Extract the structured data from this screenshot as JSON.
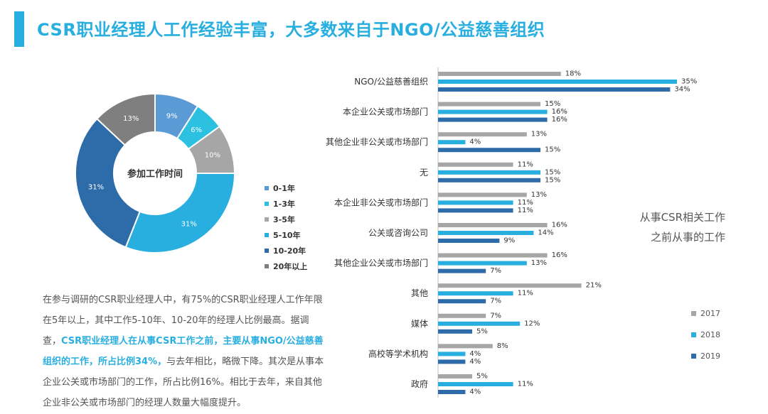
{
  "page": {
    "title": "CSR职业经理人工作经验丰富，大多数来自于NGO/公益慈善组织"
  },
  "colors": {
    "accent": "#29aee0",
    "y2017": "#a6a6a6",
    "y2018": "#29aee0",
    "y2019": "#2e6ca9"
  },
  "chart_data": [
    {
      "type": "pie",
      "title": "参加工作时间",
      "categories": [
        "0-1年",
        "1-3年",
        "3-5年",
        "5-10年",
        "10-20年",
        "20年以上"
      ],
      "values": [
        9,
        6,
        10,
        31,
        31,
        13
      ],
      "labels": [
        "9%",
        "6%",
        "10%",
        "31%",
        "31%",
        "13%"
      ],
      "colors": [
        "#5b9bd5",
        "#2cc1e0",
        "#a6a6a6",
        "#29aee0",
        "#2e6ca9",
        "#7f7f7f"
      ],
      "legend": "right"
    },
    {
      "type": "bar",
      "orientation": "horizontal",
      "title": "",
      "categories": [
        "NGO/公益慈善组织",
        "本企业公关或市场部门",
        "其他企业非公关或市场部门",
        "无",
        "本企业非公关或市场部门",
        "公关或咨询公司",
        "其他企业公关或市场部门",
        "其他",
        "媒体",
        "高校等学术机构",
        "政府"
      ],
      "series": [
        {
          "name": "2017",
          "values": [
            18,
            15,
            13,
            11,
            13,
            16,
            16,
            21,
            7,
            8,
            5
          ],
          "labels": [
            "18%",
            "15%",
            "13%",
            "11%",
            "13%",
            "16%",
            "16%",
            "21%",
            "7%",
            "8%",
            "5%"
          ]
        },
        {
          "name": "2018",
          "values": [
            35,
            16,
            4,
            15,
            11,
            14,
            13,
            11,
            12,
            4,
            11
          ],
          "labels": [
            "35%",
            "16%",
            "4%",
            "15%",
            "11%",
            "14%",
            "13%",
            "11%",
            "12%",
            "4%",
            "11%"
          ]
        },
        {
          "name": "2019",
          "values": [
            34,
            16,
            15,
            15,
            11,
            9,
            7,
            7,
            5,
            4,
            4
          ],
          "labels": [
            "34%",
            "16%",
            "15%",
            "15%",
            "11%",
            "9%",
            "7%",
            "7%",
            "5%",
            "4%",
            "4%"
          ]
        }
      ],
      "xlim": [
        0,
        35
      ],
      "grid": false,
      "legend": "bottom-right"
    }
  ],
  "side_note": {
    "line1": "从事CSR相关工作",
    "line2": "之前从事的工作"
  },
  "description": {
    "part1": "在参与调研的CSR职业经理人中，有75%的CSR职业经理人工作年限在5年以上，其中工作5-10年、10-20年的经理人比例最高。据调查，",
    "highlight": "CSR职业经理人在从事CSR工作之前，主要从事NGO/公益慈善组织的工作，所占比例34%，",
    "part2": "与去年相比，略微下降。其次是从事本企业公关或市场部门的工作，所占比例16%。相比于去年，来自其他企业非公关或市场部门的经理人数量大幅度提升。"
  }
}
